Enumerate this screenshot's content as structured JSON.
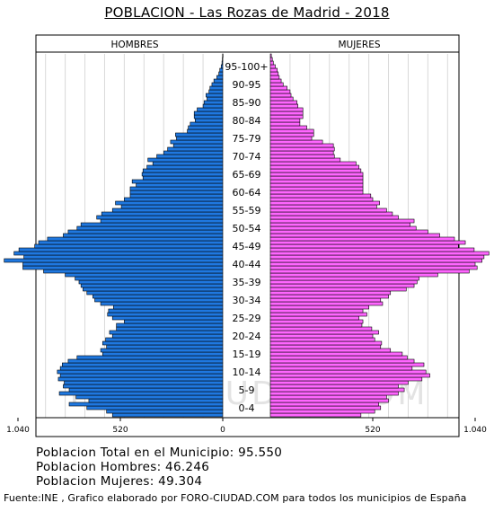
{
  "title": "POBLACION - Las Rozas de Madrid - 2018",
  "summary": {
    "total": "Poblacion Total en el Municipio: 95.550",
    "men": "Poblacion Hombres: 46.246",
    "women": "Poblacion Mujeres: 49.304"
  },
  "source": "Fuente:INE , Grafico elaborado por FORO-CIUDAD.COM para todos los municipios de España",
  "watermark": "FORO-CIUDAD.COM",
  "colors": {
    "men": "#1f78e0",
    "women": "#ff66ff",
    "bar_outline": "#000000",
    "grid": "#d9d9d9",
    "watermark": "#e3e3e3"
  },
  "chart_data": {
    "type": "bar",
    "orientation": "horizontal",
    "layout": "population-pyramid",
    "series": [
      {
        "name": "HOMBRES",
        "side": "left"
      },
      {
        "name": "MUJERES",
        "side": "right"
      }
    ],
    "x_ticks_left": [
      "1.040",
      "520",
      "0"
    ],
    "x_ticks_right": [
      "520",
      "1.040"
    ],
    "xlim": [
      0,
      1200
    ],
    "grid": true,
    "group_labels": [
      "0-4",
      "5-9",
      "10-14",
      "15-19",
      "20-24",
      "25-29",
      "30-34",
      "35-39",
      "40-44",
      "45-49",
      "50-54",
      "55-59",
      "60-64",
      "65-69",
      "70-74",
      "75-79",
      "80-84",
      "85-90",
      "90-95",
      "95-100+"
    ],
    "ages": [
      0,
      1,
      2,
      3,
      4,
      5,
      6,
      7,
      8,
      9,
      10,
      11,
      12,
      13,
      14,
      15,
      16,
      17,
      18,
      19,
      20,
      21,
      22,
      23,
      24,
      25,
      26,
      27,
      28,
      29,
      30,
      31,
      32,
      33,
      34,
      35,
      36,
      37,
      38,
      39,
      40,
      41,
      42,
      43,
      44,
      45,
      46,
      47,
      48,
      49,
      50,
      51,
      52,
      53,
      54,
      55,
      56,
      57,
      58,
      59,
      60,
      61,
      62,
      63,
      64,
      65,
      66,
      67,
      68,
      69,
      70,
      71,
      72,
      73,
      74,
      75,
      76,
      77,
      78,
      79,
      80,
      81,
      82,
      83,
      84,
      85,
      86,
      87,
      88,
      89,
      90,
      91,
      92,
      93,
      94,
      95,
      96,
      97,
      98,
      99,
      100
    ],
    "men": [
      560,
      590,
      690,
      780,
      680,
      745,
      830,
      780,
      810,
      805,
      835,
      825,
      840,
      825,
      815,
      785,
      740,
      610,
      620,
      590,
      610,
      595,
      560,
      575,
      540,
      540,
      500,
      560,
      585,
      580,
      555,
      620,
      650,
      660,
      690,
      710,
      720,
      730,
      750,
      800,
      910,
      1015,
      1015,
      1110,
      1010,
      1060,
      1035,
      955,
      935,
      890,
      810,
      785,
      740,
      720,
      620,
      640,
      615,
      560,
      515,
      545,
      500,
      470,
      470,
      470,
      440,
      460,
      405,
      410,
      405,
      385,
      355,
      380,
      335,
      300,
      280,
      250,
      265,
      235,
      240,
      180,
      175,
      165,
      140,
      145,
      145,
      130,
      100,
      95,
      80,
      85,
      70,
      65,
      55,
      45,
      30,
      20,
      15,
      8,
      4,
      2,
      1
    ],
    "women": [
      460,
      530,
      560,
      550,
      600,
      590,
      650,
      680,
      650,
      700,
      770,
      810,
      790,
      720,
      780,
      730,
      695,
      670,
      610,
      560,
      565,
      530,
      520,
      550,
      515,
      465,
      470,
      450,
      490,
      470,
      500,
      570,
      560,
      600,
      610,
      690,
      730,
      745,
      755,
      850,
      1010,
      1050,
      1040,
      1075,
      1085,
      1110,
      1035,
      955,
      990,
      935,
      860,
      800,
      740,
      710,
      730,
      650,
      620,
      590,
      540,
      555,
      520,
      510,
      470,
      470,
      470,
      470,
      470,
      470,
      460,
      450,
      435,
      355,
      325,
      320,
      325,
      320,
      265,
      210,
      220,
      220,
      185,
      150,
      150,
      165,
      165,
      165,
      140,
      135,
      115,
      105,
      100,
      85,
      65,
      55,
      45,
      40,
      35,
      25,
      15,
      10,
      5
    ]
  }
}
